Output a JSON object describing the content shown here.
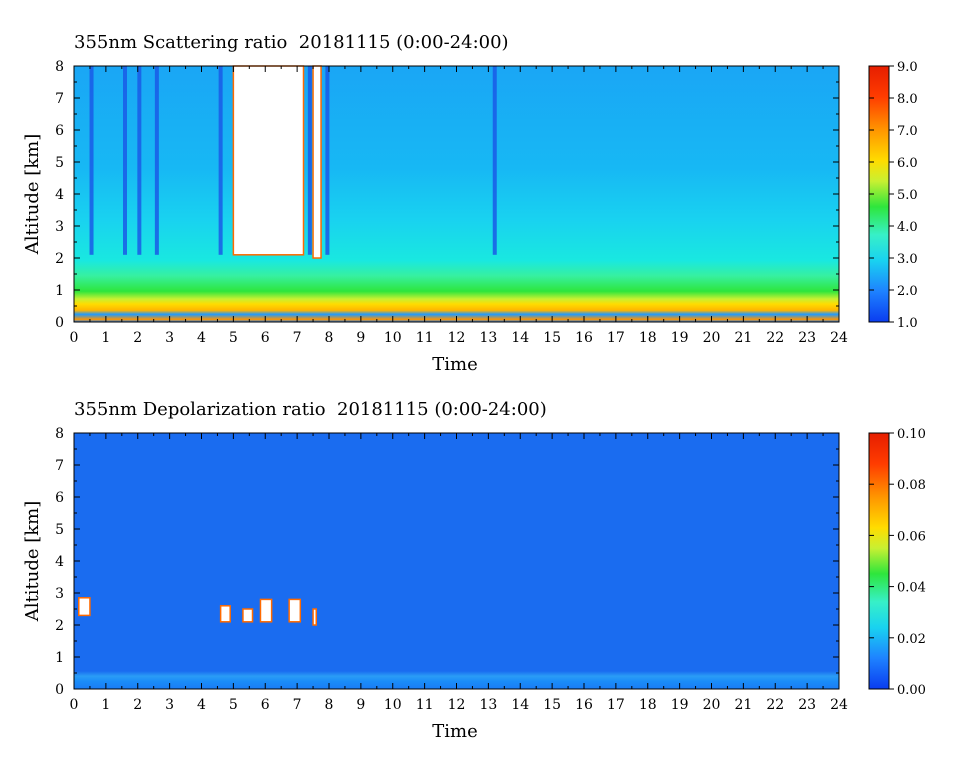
{
  "chart_data": [
    {
      "type": "heatmap",
      "title": "355nm Scattering ratio  20181115 (0:00-24:00)",
      "xlabel": "Time",
      "ylabel": "Altitude [km]",
      "xlim": [
        0,
        24
      ],
      "ylim": [
        0,
        8
      ],
      "x_ticks": [
        "0",
        "1",
        "2",
        "3",
        "4",
        "5",
        "6",
        "7",
        "8",
        "9",
        "10",
        "11",
        "12",
        "13",
        "14",
        "15",
        "16",
        "17",
        "18",
        "19",
        "20",
        "21",
        "22",
        "23",
        "24"
      ],
      "y_ticks": [
        "0",
        "1",
        "2",
        "3",
        "4",
        "5",
        "6",
        "7",
        "8"
      ],
      "colorbar": {
        "range": [
          1.0,
          9.0
        ],
        "tick_labels": [
          "1.0",
          "2.0",
          "3.0",
          "4.0",
          "5.0",
          "6.0",
          "7.0",
          "8.0",
          "9.0"
        ],
        "colors": [
          "#0a3cf0",
          "#1e82ff",
          "#19d2f0",
          "#37f0c8",
          "#2ee63c",
          "#c8f032",
          "#ffdc00",
          "#ff9600",
          "#ff3c00",
          "#e61e00"
        ]
      },
      "cloud_regions": [
        {
          "t0": 5.0,
          "t1": 7.2,
          "z0": 2.1,
          "z1": 8.0
        },
        {
          "t0": 7.5,
          "t1": 7.75,
          "z0": 2.0,
          "z1": 8.0
        }
      ],
      "gap_columns": [
        0.55,
        1.6,
        2.05,
        2.6,
        4.6,
        7.4,
        7.95,
        13.2
      ]
    },
    {
      "type": "heatmap",
      "title": "355nm Depolarization ratio  20181115 (0:00-24:00)",
      "xlabel": "Time",
      "ylabel": "Altitude [km]",
      "xlim": [
        0,
        24
      ],
      "ylim": [
        0,
        8
      ],
      "x_ticks": [
        "0",
        "1",
        "2",
        "3",
        "4",
        "5",
        "6",
        "7",
        "8",
        "9",
        "10",
        "11",
        "12",
        "13",
        "14",
        "15",
        "16",
        "17",
        "18",
        "19",
        "20",
        "21",
        "22",
        "23",
        "24"
      ],
      "y_ticks": [
        "0",
        "1",
        "2",
        "3",
        "4",
        "5",
        "6",
        "7",
        "8"
      ],
      "colorbar": {
        "range": [
          0.0,
          0.1
        ],
        "tick_labels": [
          "0.00",
          "0.02",
          "0.04",
          "0.06",
          "0.08",
          "0.10"
        ],
        "colors": [
          "#0a3cf0",
          "#1e82ff",
          "#19d2f0",
          "#37f0c8",
          "#2ee63c",
          "#c8f032",
          "#ffdc00",
          "#ff9600",
          "#ff3c00",
          "#e61e00"
        ]
      },
      "cloud_regions": [
        {
          "t0": 0.15,
          "t1": 0.5,
          "z0": 2.3,
          "z1": 2.85
        },
        {
          "t0": 4.6,
          "t1": 4.9,
          "z0": 2.1,
          "z1": 2.6
        },
        {
          "t0": 5.3,
          "t1": 5.6,
          "z0": 2.1,
          "z1": 2.5
        },
        {
          "t0": 5.85,
          "t1": 6.2,
          "z0": 2.1,
          "z1": 2.8
        },
        {
          "t0": 6.75,
          "t1": 7.1,
          "z0": 2.1,
          "z1": 2.8
        },
        {
          "t0": 7.5,
          "t1": 7.6,
          "z0": 2.0,
          "z1": 2.5
        }
      ]
    }
  ]
}
